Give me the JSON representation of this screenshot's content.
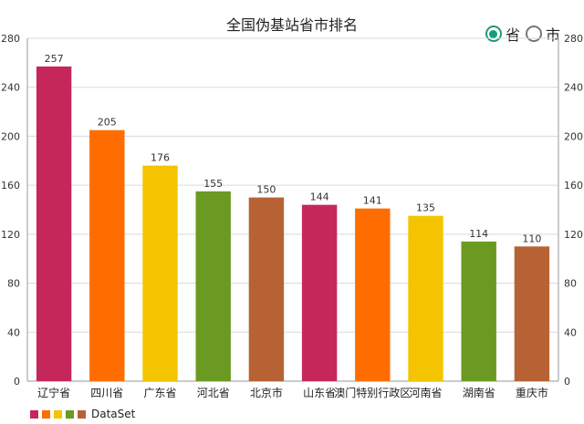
{
  "chart_data": {
    "type": "bar",
    "title": "全国伪基站省市排名",
    "categories": [
      "辽宁省",
      "四川省",
      "广东省",
      "河北省",
      "北京市",
      "山东省",
      "澳门特别行政区",
      "河南省",
      "湖南省",
      "重庆市"
    ],
    "series": [
      {
        "name": "DataSet",
        "values": [
          257,
          205,
          176,
          155,
          150,
          144,
          141,
          135,
          114,
          110
        ]
      }
    ],
    "bar_colors": [
      "#c6275a",
      "#ff6d00",
      "#f4c400",
      "#6a9a22",
      "#b76234",
      "#c6275a",
      "#ff6d00",
      "#f4c400",
      "#6a9a22",
      "#b76234"
    ],
    "ylim": [
      0,
      280
    ],
    "yticks": [
      0,
      40,
      80,
      120,
      160,
      200,
      240,
      280
    ],
    "grid": true,
    "legend_position": "bottom-left",
    "xlabel": "",
    "ylabel": ""
  },
  "filter": {
    "options": [
      {
        "label": "省",
        "checked": true
      },
      {
        "label": "市",
        "checked": false
      }
    ],
    "accent_color": "#1a9b7c"
  },
  "legend": {
    "label": "DataSet",
    "swatch_colors": [
      "#c6275a",
      "#ff6d00",
      "#f4c400",
      "#6a9a22",
      "#b76234"
    ]
  }
}
